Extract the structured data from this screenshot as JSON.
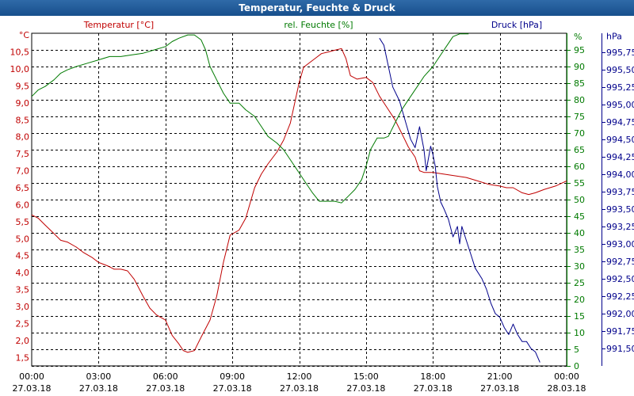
{
  "window": {
    "title": "Temperatur, Feuchte & Druck"
  },
  "colors": {
    "temperature": "#c00000",
    "humidity": "#007a00",
    "pressure": "#00008b",
    "grid": "#000000",
    "title_bar": "#1f5a9a"
  },
  "chart_data": {
    "type": "line",
    "title": "Temperatur, Feuchte & Druck",
    "x_ticks": [
      {
        "time": "00:00",
        "date": "27.03.18"
      },
      {
        "time": "03:00",
        "date": "27.03.18"
      },
      {
        "time": "06:00",
        "date": "27.03.18"
      },
      {
        "time": "09:00",
        "date": "27.03.18"
      },
      {
        "time": "12:00",
        "date": "27.03.18"
      },
      {
        "time": "15:00",
        "date": "27.03.18"
      },
      {
        "time": "18:00",
        "date": "27.03.18"
      },
      {
        "time": "21:00",
        "date": "27.03.18"
      },
      {
        "time": "00:00",
        "date": "28.03.18"
      }
    ],
    "x_range_hours": [
      0,
      24
    ],
    "grid": true,
    "axes": {
      "temperature": {
        "label": "Temperatur [°C]",
        "unit": "°C",
        "range": [
          1.25,
          11.05
        ],
        "ticks": [
          "10,5",
          "10,0",
          "9,5",
          "9,0",
          "8,5",
          "8,0",
          "7,5",
          "7,0",
          "6,5",
          "6,0",
          "5,5",
          "5,0",
          "4,5",
          "4,0",
          "3,5",
          "3,0",
          "2,5",
          "2,0",
          "1,5"
        ]
      },
      "humidity": {
        "label": "rel. Feuchte [%]",
        "unit": "%",
        "range": [
          0,
          100
        ],
        "ticks": [
          "95",
          "90",
          "85",
          "80",
          "75",
          "70",
          "65",
          "60",
          "55",
          "50",
          "45",
          "40",
          "35",
          "30",
          "25",
          "20",
          "15",
          "10",
          "5",
          "0"
        ]
      },
      "pressure": {
        "label": "Druck [hPa]",
        "unit": "hPa",
        "range": [
          991.25,
          996.02
        ],
        "ticks": [
          "995,75",
          "995,50",
          "995,25",
          "995,00",
          "994,75",
          "994,50",
          "994,25",
          "994,00",
          "993,75",
          "993,50",
          "993,25",
          "993,00",
          "992,75",
          "992,50",
          "992,25",
          "992,00",
          "991,75",
          "991,50"
        ]
      }
    },
    "series": [
      {
        "name": "Temperatur [°C]",
        "axis": "temperature",
        "color": "#c00000",
        "points": [
          [
            0,
            5.7
          ],
          [
            0.3,
            5.6
          ],
          [
            0.6,
            5.4
          ],
          [
            1,
            5.15
          ],
          [
            1.3,
            4.95
          ],
          [
            1.6,
            4.9
          ],
          [
            2,
            4.75
          ],
          [
            2.3,
            4.6
          ],
          [
            2.7,
            4.45
          ],
          [
            3,
            4.3
          ],
          [
            3.4,
            4.2
          ],
          [
            3.7,
            4.1
          ],
          [
            4,
            4.1
          ],
          [
            4.3,
            4.05
          ],
          [
            4.6,
            3.8
          ],
          [
            5,
            3.3
          ],
          [
            5.3,
            2.95
          ],
          [
            5.6,
            2.75
          ],
          [
            6,
            2.6
          ],
          [
            6.3,
            2.15
          ],
          [
            6.6,
            1.9
          ],
          [
            6.8,
            1.7
          ],
          [
            7,
            1.65
          ],
          [
            7.3,
            1.7
          ],
          [
            7.6,
            2.1
          ],
          [
            8,
            2.6
          ],
          [
            8.3,
            3.3
          ],
          [
            8.6,
            4.3
          ],
          [
            8.9,
            5.1
          ],
          [
            9.3,
            5.25
          ],
          [
            9.6,
            5.6
          ],
          [
            10,
            6.5
          ],
          [
            10.3,
            6.9
          ],
          [
            10.6,
            7.2
          ],
          [
            11,
            7.55
          ],
          [
            11.3,
            7.9
          ],
          [
            11.6,
            8.4
          ],
          [
            12,
            9.6
          ],
          [
            12.2,
            10.05
          ],
          [
            12.5,
            10.2
          ],
          [
            12.8,
            10.35
          ],
          [
            13,
            10.45
          ],
          [
            13.3,
            10.5
          ],
          [
            13.6,
            10.55
          ],
          [
            13.9,
            10.6
          ],
          [
            14.1,
            10.3
          ],
          [
            14.3,
            9.8
          ],
          [
            14.6,
            9.7
          ],
          [
            15,
            9.75
          ],
          [
            15.3,
            9.6
          ],
          [
            15.6,
            9.2
          ],
          [
            16,
            8.8
          ],
          [
            16.3,
            8.5
          ],
          [
            16.6,
            8.1
          ],
          [
            16.9,
            7.7
          ],
          [
            17.2,
            7.4
          ],
          [
            17.4,
            7.0
          ],
          [
            17.6,
            6.95
          ],
          [
            18,
            6.95
          ],
          [
            18.5,
            6.9
          ],
          [
            19,
            6.85
          ],
          [
            19.5,
            6.8
          ],
          [
            20,
            6.7
          ],
          [
            20.5,
            6.6
          ],
          [
            21,
            6.55
          ],
          [
            21.3,
            6.5
          ],
          [
            21.6,
            6.5
          ],
          [
            22,
            6.35
          ],
          [
            22.3,
            6.3
          ],
          [
            22.6,
            6.35
          ],
          [
            23,
            6.45
          ],
          [
            23.5,
            6.55
          ],
          [
            24,
            6.7
          ]
        ]
      },
      {
        "name": "rel. Feuchte [%]",
        "axis": "humidity",
        "color": "#007a00",
        "points": [
          [
            0,
            81
          ],
          [
            0.3,
            83
          ],
          [
            0.6,
            84
          ],
          [
            1,
            86
          ],
          [
            1.3,
            88
          ],
          [
            1.6,
            89
          ],
          [
            2,
            90
          ],
          [
            2.5,
            91
          ],
          [
            3,
            92
          ],
          [
            3.5,
            93
          ],
          [
            4,
            93
          ],
          [
            4.5,
            93.5
          ],
          [
            5,
            94
          ],
          [
            5.5,
            95
          ],
          [
            6,
            96
          ],
          [
            6.3,
            97.5
          ],
          [
            6.6,
            98.5
          ],
          [
            7,
            99.5
          ],
          [
            7.3,
            99.5
          ],
          [
            7.6,
            98
          ],
          [
            7.8,
            95
          ],
          [
            8,
            90
          ],
          [
            8.3,
            86
          ],
          [
            8.6,
            82
          ],
          [
            8.9,
            79
          ],
          [
            9.3,
            79
          ],
          [
            9.6,
            77
          ],
          [
            10,
            75
          ],
          [
            10.3,
            72
          ],
          [
            10.6,
            69
          ],
          [
            11,
            67
          ],
          [
            11.3,
            65
          ],
          [
            11.6,
            62
          ],
          [
            12,
            58
          ],
          [
            12.3,
            55
          ],
          [
            12.6,
            52
          ],
          [
            12.9,
            49.5
          ],
          [
            13.3,
            49.5
          ],
          [
            13.6,
            49.5
          ],
          [
            13.9,
            49
          ],
          [
            14.2,
            51
          ],
          [
            14.5,
            53
          ],
          [
            14.8,
            56
          ],
          [
            15,
            60
          ],
          [
            15.2,
            65
          ],
          [
            15.5,
            68.5
          ],
          [
            15.8,
            68.5
          ],
          [
            16,
            69
          ],
          [
            16.3,
            73
          ],
          [
            16.6,
            77
          ],
          [
            17,
            81
          ],
          [
            17.3,
            84
          ],
          [
            17.6,
            87
          ],
          [
            18,
            90
          ],
          [
            18.3,
            93
          ],
          [
            18.6,
            96
          ],
          [
            18.9,
            99
          ],
          [
            19.2,
            99.8
          ],
          [
            19.6,
            99.8
          ]
        ]
      },
      {
        "name": "Druck [hPa]",
        "axis": "pressure",
        "color": "#00008b",
        "points": [
          [
            15.6,
            995.95
          ],
          [
            15.8,
            995.85
          ],
          [
            16.2,
            995.25
          ],
          [
            16.5,
            995.05
          ],
          [
            16.8,
            994.72
          ],
          [
            17.0,
            994.5
          ],
          [
            17.2,
            994.38
          ],
          [
            17.4,
            994.68
          ],
          [
            17.6,
            994.35
          ],
          [
            17.7,
            994.05
          ],
          [
            17.9,
            994.4
          ],
          [
            18.0,
            994.28
          ],
          [
            18.1,
            994.12
          ],
          [
            18.2,
            993.82
          ],
          [
            18.35,
            993.6
          ],
          [
            18.5,
            993.5
          ],
          [
            18.7,
            993.35
          ],
          [
            18.9,
            993.1
          ],
          [
            19.1,
            993.25
          ],
          [
            19.2,
            993.0
          ],
          [
            19.3,
            993.25
          ],
          [
            19.5,
            993.05
          ],
          [
            19.7,
            992.85
          ],
          [
            19.9,
            992.65
          ],
          [
            20.2,
            992.5
          ],
          [
            20.4,
            992.35
          ],
          [
            20.6,
            992.15
          ],
          [
            20.8,
            992.0
          ],
          [
            21.0,
            991.95
          ],
          [
            21.2,
            991.8
          ],
          [
            21.4,
            991.7
          ],
          [
            21.6,
            991.85
          ],
          [
            21.8,
            991.7
          ],
          [
            22.0,
            991.6
          ],
          [
            22.2,
            991.6
          ],
          [
            22.4,
            991.5
          ],
          [
            22.6,
            991.45
          ],
          [
            22.8,
            991.3
          ]
        ]
      }
    ]
  }
}
